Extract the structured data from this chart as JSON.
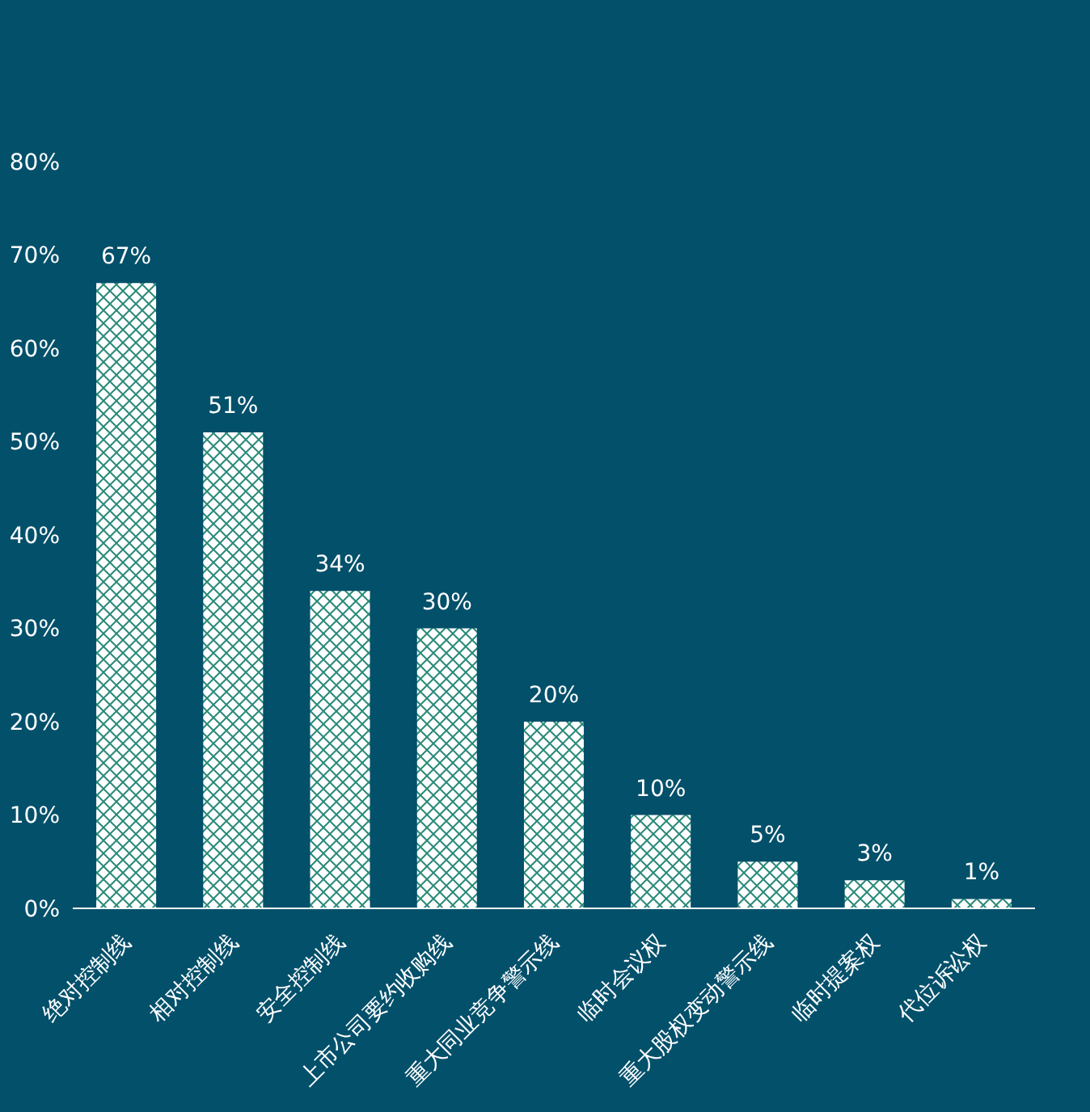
{
  "chart_data": {
    "type": "bar",
    "categories": [
      "绝对控制线",
      "相对控制线",
      "安全控制线",
      "上市公司要约收购线",
      "重大同业竞争警示线",
      "临时会议权",
      "重大股权变动警示线",
      "临时提案权",
      "代位诉讼权"
    ],
    "values": [
      67,
      51,
      34,
      30,
      20,
      10,
      5,
      3,
      1
    ],
    "value_labels": [
      "67%",
      "51%",
      "34%",
      "30%",
      "20%",
      "10%",
      "5%",
      "3%",
      "1%"
    ],
    "color": "#ffffff",
    "ylim": [
      0,
      80
    ],
    "yticks": [
      {
        "value": 0,
        "label": "0%"
      },
      {
        "value": 10,
        "label": "10%"
      },
      {
        "value": 20,
        "label": "20%"
      },
      {
        "value": 30,
        "label": "30%"
      },
      {
        "value": 40,
        "label": "40%"
      },
      {
        "value": 50,
        "label": "50%"
      },
      {
        "value": 60,
        "label": "60%"
      },
      {
        "value": 70,
        "label": "70%"
      },
      {
        "value": 80,
        "label": "80%"
      }
    ],
    "grid": false,
    "legend": false
  }
}
